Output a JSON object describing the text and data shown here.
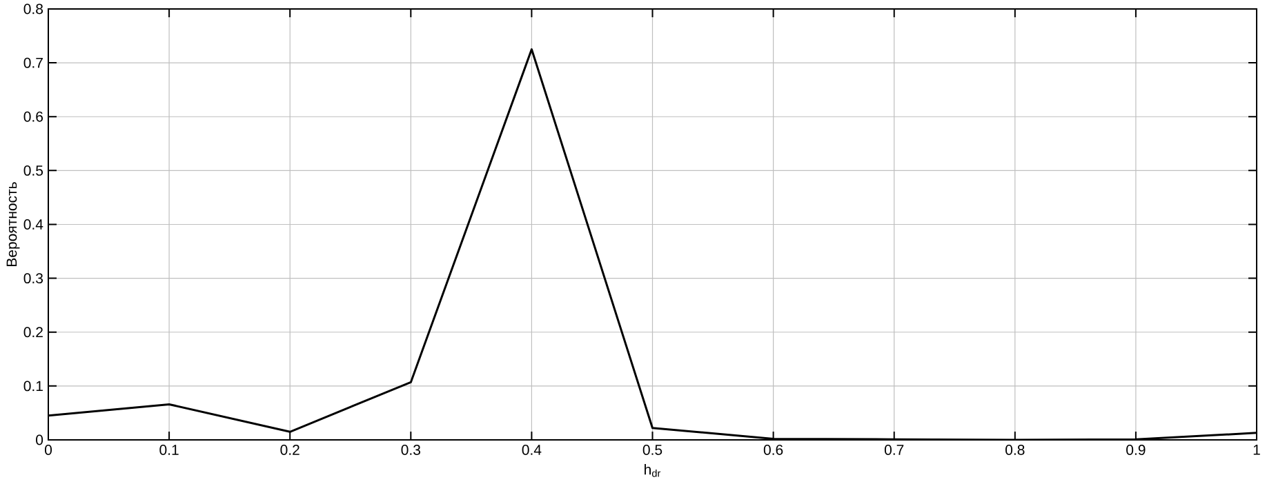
{
  "chart_data": {
    "type": "line",
    "xlabel": "h$_{dr}$",
    "ylabel": "Вероятность",
    "x": [
      0,
      0.1,
      0.2,
      0.3,
      0.4,
      0.5,
      0.6,
      0.7,
      0.8,
      0.9,
      1
    ],
    "series": [
      {
        "color": "#000000",
        "values": [
          0.045,
          0.066,
          0.015,
          0.107,
          0.725,
          0.022,
          0.002,
          0.001,
          0.0,
          0.001,
          0.013
        ]
      }
    ],
    "xlim": [
      0,
      1
    ],
    "ylim": [
      0,
      0.8
    ],
    "xticks": [
      0,
      0.1,
      0.2,
      0.3,
      0.4,
      0.5,
      0.6,
      0.7,
      0.8,
      0.9,
      1
    ],
    "yticks": [
      0,
      0.1,
      0.2,
      0.3,
      0.4,
      0.5,
      0.6,
      0.7,
      0.8
    ],
    "grid": true,
    "marker": "none",
    "line_style": "solid"
  }
}
